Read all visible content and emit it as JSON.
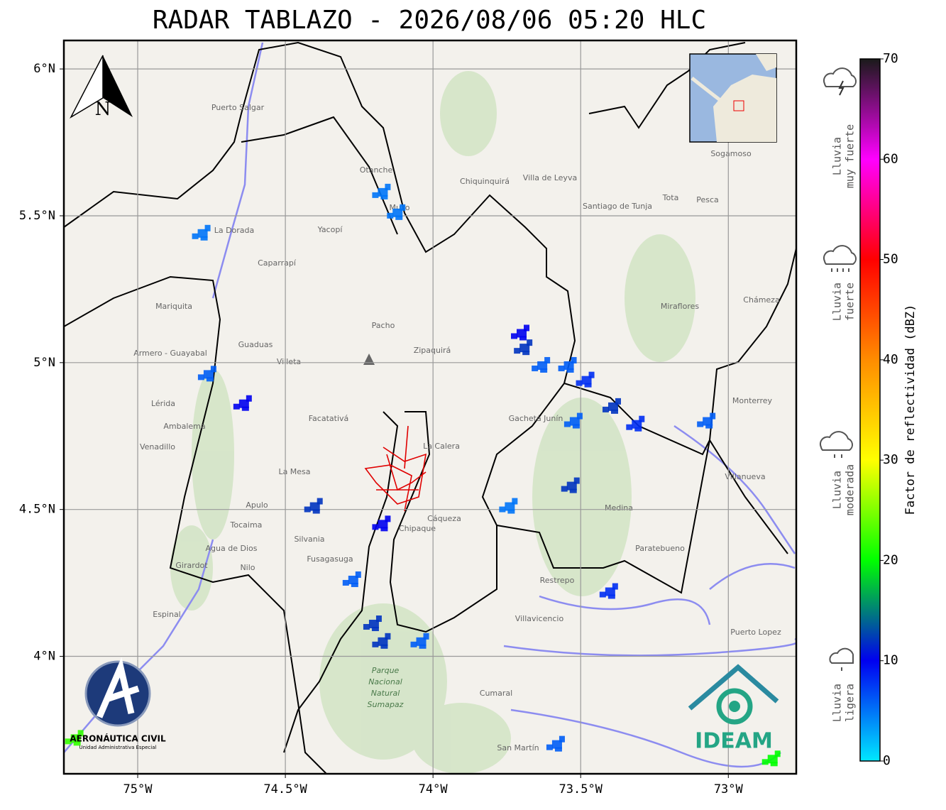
{
  "title": "RADAR TABLAZO - 2026/08/06 05:20 HLC",
  "map": {
    "xlim": [
      -75.25,
      -72.77
    ],
    "ylim": [
      3.6,
      6.097
    ],
    "xticks": [
      {
        "value": -75,
        "label": "75°W"
      },
      {
        "value": -74.5,
        "label": "74.5°W"
      },
      {
        "value": -74,
        "label": "74°W"
      },
      {
        "value": -73.5,
        "label": "73.5°W"
      },
      {
        "value": -73,
        "label": "73°W"
      }
    ],
    "yticks": [
      {
        "value": 4,
        "label": "4°N"
      },
      {
        "value": 4.5,
        "label": "4.5°N"
      },
      {
        "value": 5,
        "label": "5°N"
      },
      {
        "value": 5.5,
        "label": "5.5°N"
      },
      {
        "value": 6,
        "label": "6°N"
      }
    ],
    "grid": true,
    "north": "N",
    "places": [
      "Villavicencio",
      "Villa de Leyva",
      "Santiago de Tunja",
      "Zipaquirá",
      "La Calera",
      "Fusagasuga",
      "Girardot",
      "Facatativá",
      "Guaduas",
      "Pacho",
      "Sogamoso",
      "Chiquinquirá",
      "Cáqueza",
      "Restrepo",
      "Cumaral",
      "San Martín",
      "Chipaque",
      "Puerto Salgar",
      "La Dorada",
      "Mariquita",
      "Armero - Guayabal",
      "Ambalema",
      "Lérida",
      "Venadillo",
      "Espinal",
      "Nilo",
      "Agua de Dios",
      "Tocaima",
      "Apulo",
      "La Mesa",
      "Silvania",
      "Villeta",
      "Caparrapí",
      "Yacopí",
      "Muzo",
      "Otanche",
      "Gachetá Junín",
      "Medina",
      "Paratebueno",
      "Monterrey",
      "Villanueva",
      "Miraflores",
      "Chámeza",
      "Pesca",
      "Tota",
      "Puerto Lopez",
      "Parque",
      "Nacional",
      "Natural",
      "Sumapaz"
    ]
  },
  "echoes": {
    "lon": [
      -73.7,
      -73.69,
      -73.63,
      -73.54,
      -73.48,
      -73.39,
      -73.31,
      -73.07,
      -73.52,
      -73.53,
      -73.74,
      -74.4,
      -74.64,
      -74.76,
      -74.17,
      -74.2,
      -74.17,
      -74.04,
      -74.27,
      -74.78,
      -74.12,
      -73.4,
      -72.85,
      -75.21,
      -73.58,
      -74.17
    ],
    "lat": [
      5.1,
      5.05,
      4.99,
      4.99,
      4.94,
      4.85,
      4.79,
      4.8,
      4.8,
      4.58,
      4.51,
      4.51,
      4.86,
      4.96,
      4.45,
      4.11,
      4.05,
      4.05,
      4.26,
      5.44,
      5.51,
      4.22,
      3.65,
      3.72,
      3.7,
      5.58
    ],
    "dbz": [
      10,
      12,
      6,
      6,
      8,
      12,
      8,
      6,
      6,
      12,
      5,
      12,
      10,
      6,
      10,
      12,
      12,
      6,
      6,
      5,
      5,
      8,
      20,
      22,
      6,
      5
    ]
  },
  "colorbar": {
    "label": "Factor de reflectividad (dBZ)",
    "clim": [
      0,
      70
    ],
    "ticks": [
      0,
      10,
      20,
      30,
      40,
      50,
      60,
      70
    ],
    "colors": [
      "#00e8ff",
      "#0000f0",
      "#00ff00",
      "#ffff00",
      "#ff8c00",
      "#ff0000",
      "#ff00ff",
      "#1a1a1a"
    ]
  },
  "legend": [
    [
      "Lluvia",
      "muy fuerte"
    ],
    [
      "Lluvia",
      "fuerte"
    ],
    [
      "Lluvia",
      "moderada"
    ],
    [
      "Lluvia",
      "ligera"
    ]
  ],
  "logos": {
    "aero": "AERONÁUTICA CIVIL",
    "aero_sub": "Unidad Administrativa Especial",
    "ideam": "IDEAM"
  }
}
